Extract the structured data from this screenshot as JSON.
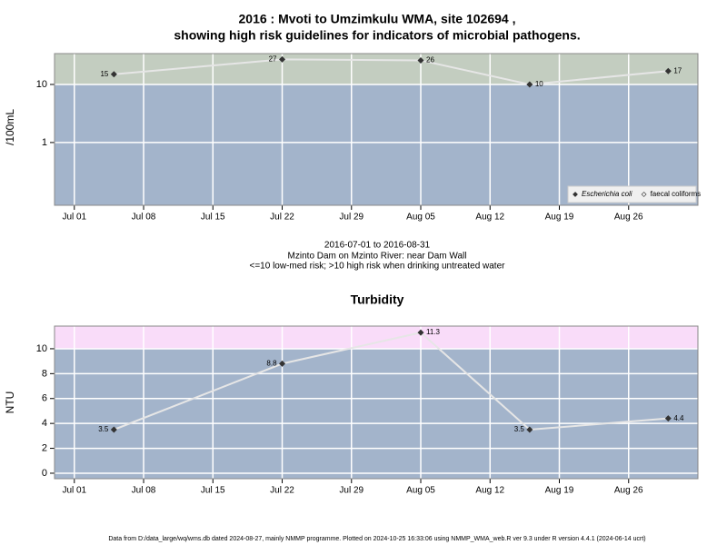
{
  "chart_data": [
    {
      "type": "line",
      "title": [
        "2016 : Mvoti to Umzimkulu WMA, site 102694 ,",
        "showing high risk guidelines for indicators of microbial pathogens."
      ],
      "ylabel": "/100mL",
      "log_scale": true,
      "x": [
        "2016-07-05",
        "2016-07-22",
        "2016-08-05",
        "2016-08-16",
        "2016-08-30"
      ],
      "series": [
        {
          "name": "Escherichia coli",
          "color": "#333333",
          "values": [
            15,
            27,
            26,
            10,
            17
          ]
        },
        {
          "name": "faecal coliforms",
          "color": "#333333",
          "values": [
            null,
            null,
            null,
            null,
            null
          ]
        }
      ],
      "xlim": [
        "2016-06-29",
        "2016-09-02"
      ],
      "xticks": [
        {
          "value": "2016-07-01",
          "label": "Jul 01"
        },
        {
          "value": "2016-07-08",
          "label": "Jul 08"
        },
        {
          "value": "2016-07-15",
          "label": "Jul 15"
        },
        {
          "value": "2016-07-22",
          "label": "Jul 22"
        },
        {
          "value": "2016-07-29",
          "label": "Jul 29"
        },
        {
          "value": "2016-08-05",
          "label": "Aug 05"
        },
        {
          "value": "2016-08-12",
          "label": "Aug 12"
        },
        {
          "value": "2016-08-19",
          "label": "Aug 19"
        },
        {
          "value": "2016-08-26",
          "label": "Aug 26"
        }
      ],
      "ylim": [
        0.083,
        34
      ],
      "yticks": [
        1,
        10
      ],
      "threshold": 10,
      "below_color": "#a3b4cb",
      "above_color": "#c3cdc0",
      "grid": true,
      "legend": "bottom-right"
    },
    {
      "type": "line",
      "title": [
        "Turbidity"
      ],
      "ylabel": "NTU",
      "log_scale": false,
      "x": [
        "2016-07-05",
        "2016-07-22",
        "2016-08-05",
        "2016-08-16",
        "2016-08-30"
      ],
      "series": [
        {
          "name": "Turbidity",
          "color": "#333333",
          "values": [
            3.5,
            8.8,
            11.3,
            3.5,
            4.4
          ]
        }
      ],
      "xlim": [
        "2016-06-29",
        "2016-09-02"
      ],
      "xticks": [
        {
          "value": "2016-07-01",
          "label": "Jul 01"
        },
        {
          "value": "2016-07-08",
          "label": "Jul 08"
        },
        {
          "value": "2016-07-15",
          "label": "Jul 15"
        },
        {
          "value": "2016-07-22",
          "label": "Jul 22"
        },
        {
          "value": "2016-07-29",
          "label": "Jul 29"
        },
        {
          "value": "2016-08-05",
          "label": "Aug 05"
        },
        {
          "value": "2016-08-12",
          "label": "Aug 12"
        },
        {
          "value": "2016-08-19",
          "label": "Aug 19"
        },
        {
          "value": "2016-08-26",
          "label": "Aug 26"
        }
      ],
      "ylim": [
        -0.44,
        11.82
      ],
      "yticks": [
        0,
        2,
        4,
        6,
        8,
        10
      ],
      "threshold": 10,
      "below_color": "#a3b4cb",
      "above_color": "#f9dcf9",
      "grid": true
    }
  ],
  "caption": [
    "2016-07-01 to 2016-08-31",
    "Mzinto Dam on Mzinto River: near Dam Wall",
    "<=10 low-med risk; >10 high risk when drinking untreated water"
  ],
  "footer": "Data from D:/data_large/wq/wms.db dated 2024-08-27, mainly NMMP programme. Plotted on 2024-10-25 16:33:06 using NMMP_WMA_web.R ver 9.3 under R version 4.4.1 (2024-06-14 ucrt)"
}
